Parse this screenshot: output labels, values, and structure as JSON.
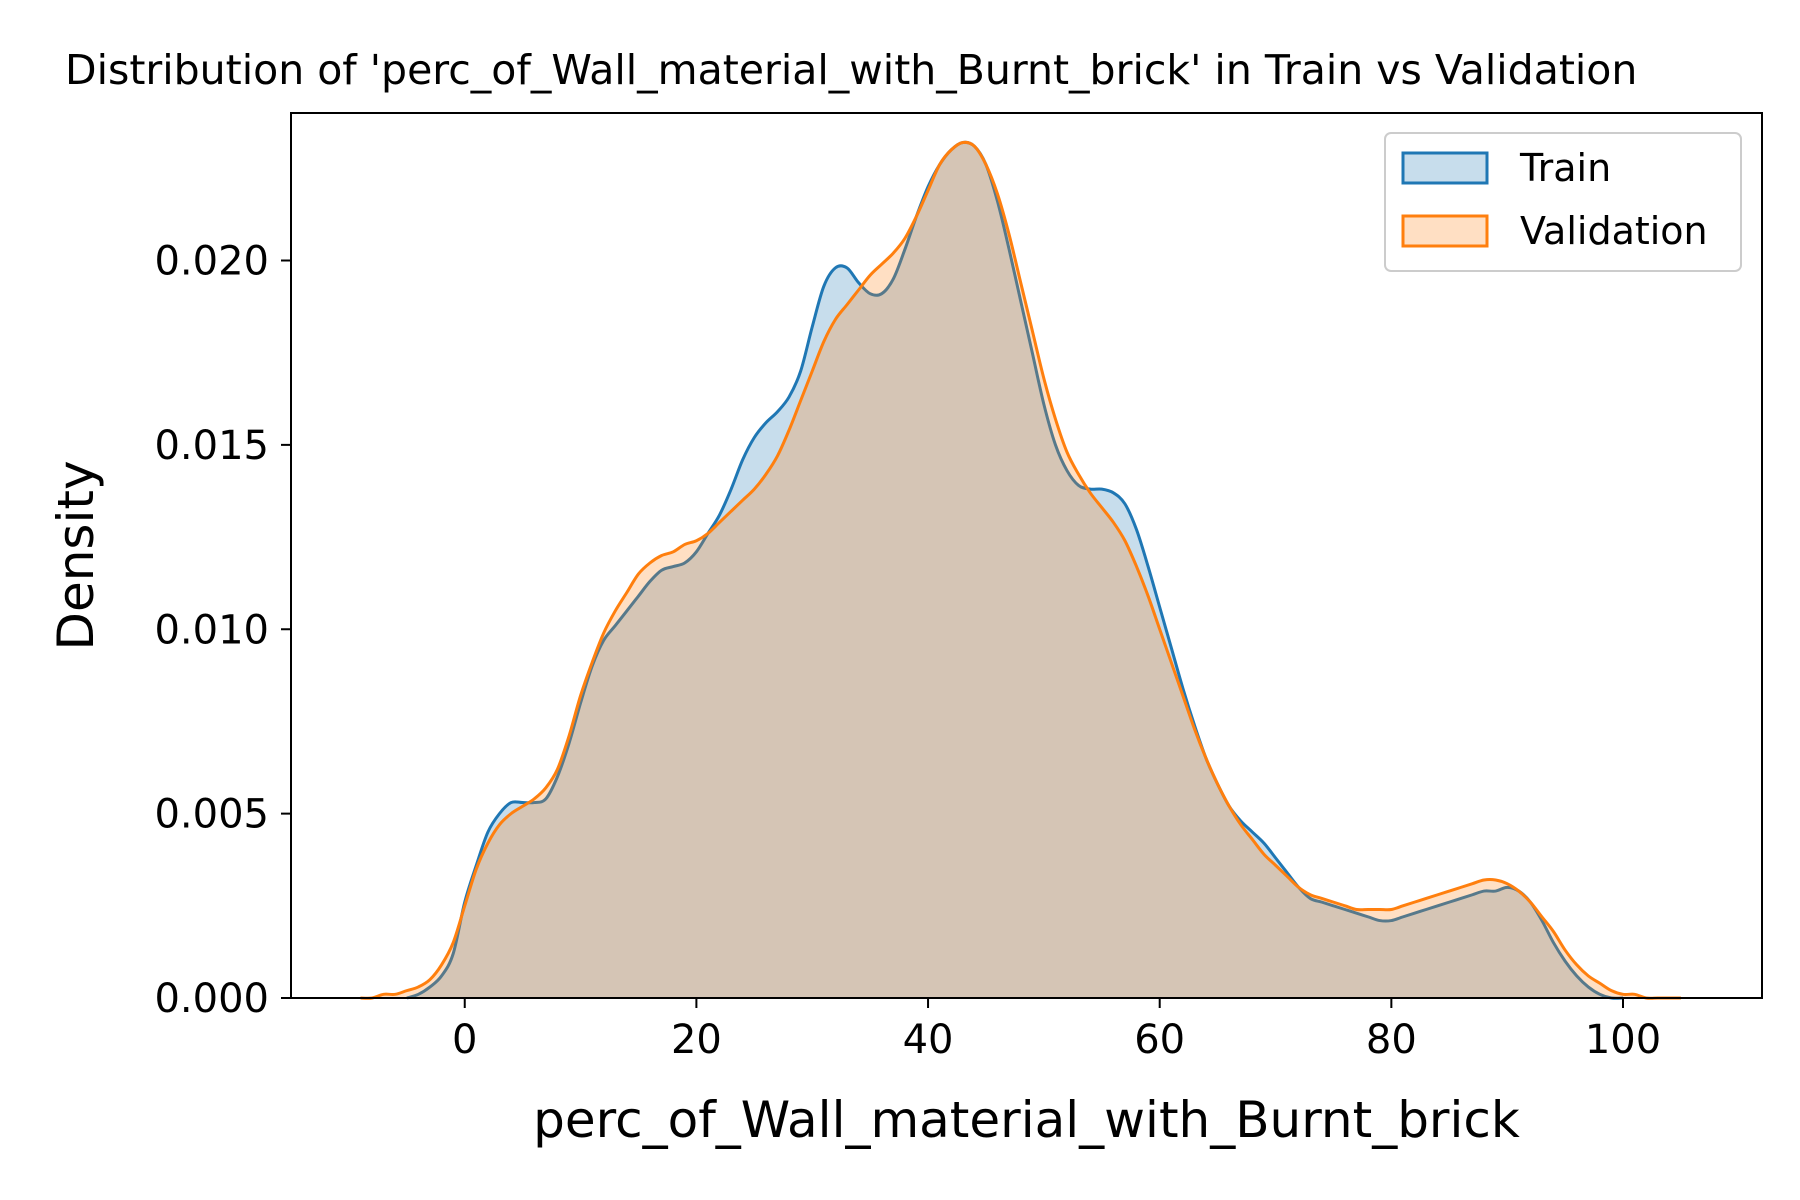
{
  "chart_data": {
    "type": "area",
    "title": "Distribution of 'perc_of_Wall_material_with_Burnt_brick' in Train vs Validation",
    "xlabel": "perc_of_Wall_material_with_Burnt_brick",
    "ylabel": "Density",
    "xlim": [
      -15,
      112
    ],
    "ylim": [
      0,
      0.024
    ],
    "grid": false,
    "legend_position": "top-right",
    "x_ticks": [
      0,
      20,
      40,
      60,
      80,
      100
    ],
    "x_tick_labels": [
      "0",
      "20",
      "40",
      "60",
      "80",
      "100"
    ],
    "y_ticks": [
      0,
      0.005,
      0.01,
      0.015,
      0.02
    ],
    "y_tick_labels": [
      "0.000",
      "0.005",
      "0.010",
      "0.015",
      "0.020"
    ],
    "series": [
      {
        "name": "Train",
        "line_color": "#1f77b4",
        "fill_color": "#1f77b4",
        "fill_opacity": 0.25,
        "points": [
          [
            -5,
            0.0
          ],
          [
            -4,
            0.0001
          ],
          [
            -3,
            0.0003
          ],
          [
            -2,
            0.0006
          ],
          [
            -1,
            0.0012
          ],
          [
            0,
            0.0026
          ],
          [
            1,
            0.0036
          ],
          [
            2,
            0.0045
          ],
          [
            3,
            0.005
          ],
          [
            4,
            0.0053
          ],
          [
            5,
            0.0053
          ],
          [
            6,
            0.0053
          ],
          [
            7,
            0.0054
          ],
          [
            8,
            0.006
          ],
          [
            9,
            0.0069
          ],
          [
            10,
            0.008
          ],
          [
            11,
            0.009
          ],
          [
            12,
            0.0097
          ],
          [
            13,
            0.0101
          ],
          [
            14,
            0.0105
          ],
          [
            15,
            0.0109
          ],
          [
            16,
            0.0113
          ],
          [
            17,
            0.0116
          ],
          [
            18,
            0.0117
          ],
          [
            19,
            0.0118
          ],
          [
            20,
            0.0121
          ],
          [
            21,
            0.0126
          ],
          [
            22,
            0.0131
          ],
          [
            23,
            0.0138
          ],
          [
            24,
            0.0146
          ],
          [
            25,
            0.0152
          ],
          [
            26,
            0.0156
          ],
          [
            27,
            0.0159
          ],
          [
            28,
            0.0163
          ],
          [
            29,
            0.017
          ],
          [
            30,
            0.0182
          ],
          [
            31,
            0.0193
          ],
          [
            32,
            0.0198
          ],
          [
            33,
            0.0198
          ],
          [
            34,
            0.0194
          ],
          [
            35,
            0.0191
          ],
          [
            36,
            0.0191
          ],
          [
            37,
            0.0195
          ],
          [
            38,
            0.0203
          ],
          [
            39,
            0.0212
          ],
          [
            40,
            0.022
          ],
          [
            41,
            0.0226
          ],
          [
            42,
            0.023
          ],
          [
            43,
            0.0232
          ],
          [
            44,
            0.0231
          ],
          [
            45,
            0.0226
          ],
          [
            46,
            0.0216
          ],
          [
            47,
            0.0203
          ],
          [
            48,
            0.0189
          ],
          [
            49,
            0.0175
          ],
          [
            50,
            0.0161
          ],
          [
            51,
            0.015
          ],
          [
            52,
            0.0143
          ],
          [
            53,
            0.0139
          ],
          [
            54,
            0.0138
          ],
          [
            55,
            0.0138
          ],
          [
            56,
            0.0137
          ],
          [
            57,
            0.0134
          ],
          [
            58,
            0.0127
          ],
          [
            59,
            0.0117
          ],
          [
            60,
            0.0106
          ],
          [
            61,
            0.0095
          ],
          [
            62,
            0.0084
          ],
          [
            63,
            0.0074
          ],
          [
            64,
            0.0065
          ],
          [
            65,
            0.0058
          ],
          [
            66,
            0.0052
          ],
          [
            67,
            0.0048
          ],
          [
            68,
            0.0045
          ],
          [
            69,
            0.0042
          ],
          [
            70,
            0.0038
          ],
          [
            71,
            0.0034
          ],
          [
            72,
            0.003
          ],
          [
            73,
            0.0027
          ],
          [
            74,
            0.0026
          ],
          [
            75,
            0.0025
          ],
          [
            76,
            0.0024
          ],
          [
            77,
            0.0023
          ],
          [
            78,
            0.0022
          ],
          [
            79,
            0.0021
          ],
          [
            80,
            0.0021
          ],
          [
            81,
            0.0022
          ],
          [
            82,
            0.0023
          ],
          [
            83,
            0.0024
          ],
          [
            84,
            0.0025
          ],
          [
            85,
            0.0026
          ],
          [
            86,
            0.0027
          ],
          [
            87,
            0.0028
          ],
          [
            88,
            0.0029
          ],
          [
            89,
            0.0029
          ],
          [
            90,
            0.003
          ],
          [
            91,
            0.0029
          ],
          [
            92,
            0.0026
          ],
          [
            93,
            0.0021
          ],
          [
            94,
            0.0015
          ],
          [
            95,
            0.001
          ],
          [
            96,
            0.0006
          ],
          [
            97,
            0.0003
          ],
          [
            98,
            0.0001
          ],
          [
            99,
            0.0
          ],
          [
            100,
            0.0
          ]
        ]
      },
      {
        "name": "Validation",
        "line_color": "#ff7f0e",
        "fill_color": "#ff7f0e",
        "fill_opacity": 0.25,
        "points": [
          [
            -9,
            0.0
          ],
          [
            -8,
            0.0
          ],
          [
            -7,
            0.0001
          ],
          [
            -6,
            0.0001
          ],
          [
            -5,
            0.0002
          ],
          [
            -4,
            0.0003
          ],
          [
            -3,
            0.0005
          ],
          [
            -2,
            0.0009
          ],
          [
            -1,
            0.0015
          ],
          [
            0,
            0.0025
          ],
          [
            1,
            0.0035
          ],
          [
            2,
            0.0042
          ],
          [
            3,
            0.0047
          ],
          [
            4,
            0.005
          ],
          [
            5,
            0.0052
          ],
          [
            6,
            0.0054
          ],
          [
            7,
            0.0057
          ],
          [
            8,
            0.0062
          ],
          [
            9,
            0.0071
          ],
          [
            10,
            0.0082
          ],
          [
            11,
            0.0091
          ],
          [
            12,
            0.0099
          ],
          [
            13,
            0.0105
          ],
          [
            14,
            0.011
          ],
          [
            15,
            0.0115
          ],
          [
            16,
            0.0118
          ],
          [
            17,
            0.012
          ],
          [
            18,
            0.0121
          ],
          [
            19,
            0.0123
          ],
          [
            20,
            0.0124
          ],
          [
            21,
            0.0126
          ],
          [
            22,
            0.0129
          ],
          [
            23,
            0.0132
          ],
          [
            24,
            0.0135
          ],
          [
            25,
            0.0138
          ],
          [
            26,
            0.0142
          ],
          [
            27,
            0.0147
          ],
          [
            28,
            0.0154
          ],
          [
            29,
            0.0162
          ],
          [
            30,
            0.017
          ],
          [
            31,
            0.0178
          ],
          [
            32,
            0.0184
          ],
          [
            33,
            0.0188
          ],
          [
            34,
            0.0192
          ],
          [
            35,
            0.0196
          ],
          [
            36,
            0.0199
          ],
          [
            37,
            0.0202
          ],
          [
            38,
            0.0206
          ],
          [
            39,
            0.0212
          ],
          [
            40,
            0.0219
          ],
          [
            41,
            0.0226
          ],
          [
            42,
            0.023
          ],
          [
            43,
            0.0232
          ],
          [
            44,
            0.0231
          ],
          [
            45,
            0.0226
          ],
          [
            46,
            0.0218
          ],
          [
            47,
            0.0207
          ],
          [
            48,
            0.0194
          ],
          [
            49,
            0.0181
          ],
          [
            50,
            0.0168
          ],
          [
            51,
            0.0157
          ],
          [
            52,
            0.0148
          ],
          [
            53,
            0.0142
          ],
          [
            54,
            0.0137
          ],
          [
            55,
            0.0133
          ],
          [
            56,
            0.0129
          ],
          [
            57,
            0.0124
          ],
          [
            58,
            0.0117
          ],
          [
            59,
            0.0109
          ],
          [
            60,
            0.01
          ],
          [
            61,
            0.0091
          ],
          [
            62,
            0.0082
          ],
          [
            63,
            0.0073
          ],
          [
            64,
            0.0065
          ],
          [
            65,
            0.0058
          ],
          [
            66,
            0.0052
          ],
          [
            67,
            0.0047
          ],
          [
            68,
            0.0043
          ],
          [
            69,
            0.0039
          ],
          [
            70,
            0.0036
          ],
          [
            71,
            0.0033
          ],
          [
            72,
            0.003
          ],
          [
            73,
            0.0028
          ],
          [
            74,
            0.0027
          ],
          [
            75,
            0.0026
          ],
          [
            76,
            0.0025
          ],
          [
            77,
            0.0024
          ],
          [
            78,
            0.0024
          ],
          [
            79,
            0.0024
          ],
          [
            80,
            0.0024
          ],
          [
            81,
            0.0025
          ],
          [
            82,
            0.0026
          ],
          [
            83,
            0.0027
          ],
          [
            84,
            0.0028
          ],
          [
            85,
            0.0029
          ],
          [
            86,
            0.003
          ],
          [
            87,
            0.0031
          ],
          [
            88,
            0.0032
          ],
          [
            89,
            0.0032
          ],
          [
            90,
            0.0031
          ],
          [
            91,
            0.0029
          ],
          [
            92,
            0.0026
          ],
          [
            93,
            0.0022
          ],
          [
            94,
            0.0018
          ],
          [
            95,
            0.0013
          ],
          [
            96,
            0.0009
          ],
          [
            97,
            0.0006
          ],
          [
            98,
            0.0004
          ],
          [
            99,
            0.0002
          ],
          [
            100,
            0.0001
          ],
          [
            101,
            0.0001
          ],
          [
            102,
            0.0
          ],
          [
            103,
            0.0
          ],
          [
            104,
            0.0
          ],
          [
            105,
            0.0
          ]
        ]
      }
    ]
  }
}
